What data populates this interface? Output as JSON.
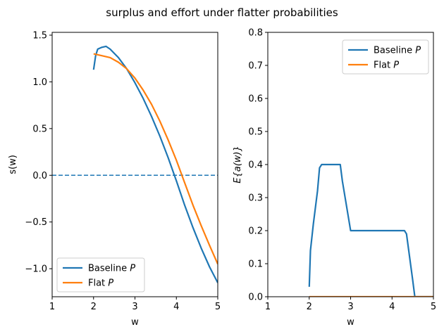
{
  "title": "surplus and effort under flatter probabilities",
  "colors": {
    "baseline": "#1f77b4",
    "flat": "#ff7f0e",
    "zero_line": "#1f77b4"
  },
  "chart_data": [
    {
      "type": "line",
      "xlabel": "w",
      "ylabel": "s(w)",
      "xlim": [
        1,
        5
      ],
      "ylim": [
        -1.3,
        1.53
      ],
      "xticks": [
        1,
        2,
        3,
        4,
        5
      ],
      "xtick_labels": [
        "1",
        "2",
        "3",
        "4",
        "5"
      ],
      "yticks": [
        1.5,
        1.0,
        0.5,
        0.0,
        -0.5,
        -1.0
      ],
      "ytick_labels": [
        "1.5",
        "1.0",
        "0.5",
        "0.0",
        "−0.5",
        "−1.0"
      ],
      "hline": {
        "y": 0,
        "style": "dashed"
      },
      "legend": {
        "placement": "lower-left",
        "entries": [
          "Baseline",
          "Flat"
        ],
        "italic_suffix": "P"
      },
      "series": [
        {
          "name": "Baseline P",
          "color_key": "baseline",
          "x": [
            2.0,
            2.05,
            2.1,
            2.2,
            2.3,
            2.4,
            2.6,
            2.8,
            3.0,
            3.2,
            3.4,
            3.6,
            3.8,
            4.0,
            4.2,
            4.4,
            4.6,
            4.8,
            5.0
          ],
          "y": [
            1.13,
            1.28,
            1.35,
            1.37,
            1.38,
            1.35,
            1.26,
            1.14,
            0.99,
            0.82,
            0.63,
            0.42,
            0.19,
            -0.06,
            -0.32,
            -0.56,
            -0.78,
            -0.98,
            -1.15
          ]
        },
        {
          "name": "Flat P",
          "color_key": "flat",
          "x": [
            2.0,
            2.2,
            2.4,
            2.6,
            2.8,
            3.0,
            3.2,
            3.4,
            3.6,
            3.8,
            4.0,
            4.2,
            4.4,
            4.6,
            4.8,
            5.0
          ],
          "y": [
            1.3,
            1.28,
            1.26,
            1.21,
            1.14,
            1.04,
            0.91,
            0.76,
            0.58,
            0.38,
            0.16,
            -0.08,
            -0.32,
            -0.54,
            -0.75,
            -0.95
          ]
        }
      ]
    },
    {
      "type": "line",
      "xlabel": "w",
      "ylabel": "E{a(w)}",
      "xlim": [
        1,
        5
      ],
      "ylim": [
        0,
        0.8
      ],
      "xticks": [
        1,
        2,
        3,
        4,
        5
      ],
      "xtick_labels": [
        "1",
        "2",
        "3",
        "4",
        "5"
      ],
      "yticks": [
        0.0,
        0.1,
        0.2,
        0.3,
        0.4,
        0.5,
        0.6,
        0.7,
        0.8
      ],
      "ytick_labels": [
        "0.0",
        "0.1",
        "0.2",
        "0.3",
        "0.4",
        "0.5",
        "0.6",
        "0.7",
        "0.8"
      ],
      "legend": {
        "placement": "top-right",
        "entries": [
          "Baseline",
          "Flat"
        ],
        "italic_suffix": "P"
      },
      "series": [
        {
          "name": "Baseline P",
          "color_key": "baseline",
          "x": [
            2.0,
            2.03,
            2.1,
            2.2,
            2.25,
            2.3,
            2.5,
            2.7,
            2.75,
            2.8,
            3.0,
            3.2,
            3.5,
            4.0,
            4.3,
            4.35,
            4.5,
            4.55,
            5.0
          ],
          "y": [
            0.03,
            0.14,
            0.22,
            0.32,
            0.39,
            0.4,
            0.4,
            0.4,
            0.4,
            0.35,
            0.2,
            0.2,
            0.2,
            0.2,
            0.2,
            0.19,
            0.05,
            0.0,
            0.0
          ]
        },
        {
          "name": "Flat P",
          "color_key": "flat",
          "x": [
            2.0,
            5.0
          ],
          "y": [
            0.0,
            0.0
          ]
        }
      ]
    }
  ]
}
